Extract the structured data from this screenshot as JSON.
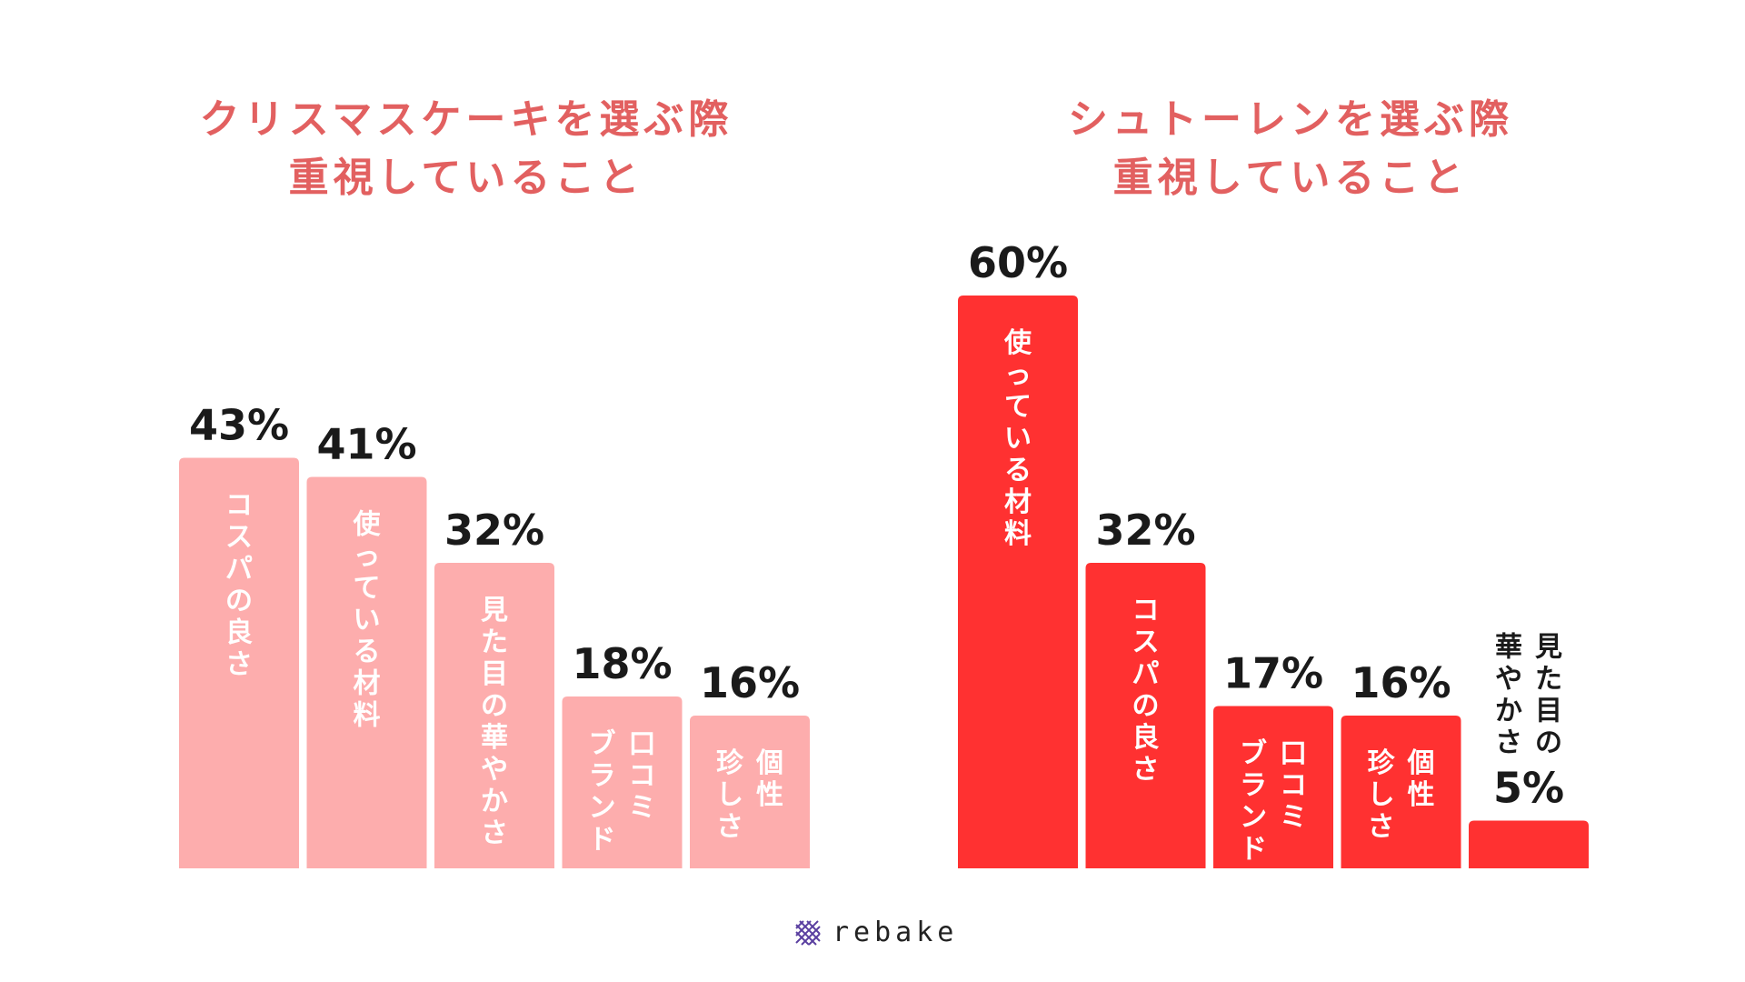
{
  "colors": {
    "title": "#e26060",
    "left_bar": "#fdadad",
    "right_bar": "#ff3131",
    "bar_label_light": "#ffffff",
    "value_label": "#1a1a1a"
  },
  "chart_data": [
    {
      "type": "bar",
      "title_lines": [
        "クリスマスケーキを選ぶ際",
        "重視していること"
      ],
      "unit": "%",
      "categories": [
        [
          "コスパの良さ"
        ],
        [
          "使っている材料"
        ],
        [
          "見た目の華やかさ"
        ],
        [
          "口コミ",
          "ブランド"
        ],
        [
          "個性",
          "珍しさ"
        ]
      ],
      "values": [
        43,
        41,
        32,
        18,
        16
      ],
      "value_labels": [
        "43%",
        "41%",
        "32%",
        "18%",
        "16%"
      ],
      "label_placement": [
        "inside",
        "inside",
        "inside",
        "inside",
        "inside"
      ]
    },
    {
      "type": "bar",
      "title_lines": [
        "シュトーレンを選ぶ際",
        "重視していること"
      ],
      "unit": "%",
      "categories": [
        [
          "使っている材料"
        ],
        [
          "コスパの良さ"
        ],
        [
          "口コミ",
          "ブランド"
        ],
        [
          "個性",
          "珍しさ"
        ],
        [
          "見た目の",
          "華やかさ"
        ]
      ],
      "values": [
        60,
        32,
        17,
        16,
        5
      ],
      "value_labels": [
        "60%",
        "32%",
        "17%",
        "16%",
        "5%"
      ],
      "label_placement": [
        "inside",
        "inside",
        "inside",
        "inside",
        "above"
      ]
    }
  ],
  "logo": {
    "text": "rebake",
    "icon": "hatched-diamond-icon"
  }
}
